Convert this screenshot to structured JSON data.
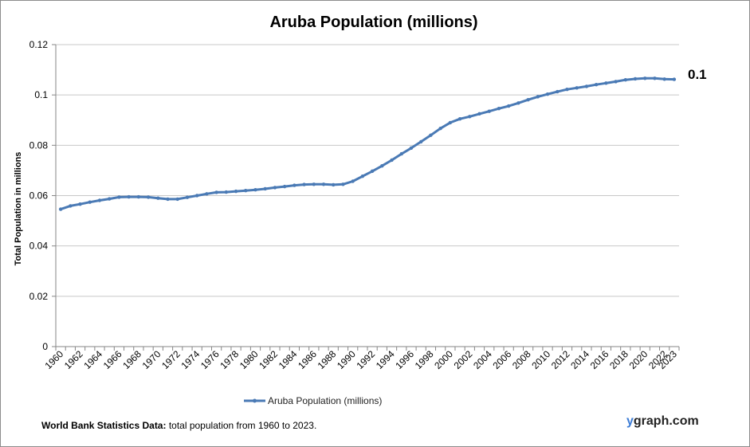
{
  "footer": {
    "source_bold": "World Bank Statistics Data:",
    "source_text": " total population from 1960 to 2023."
  },
  "brand": {
    "first": "y",
    "rest": "graph.com"
  },
  "chart_data": {
    "type": "line",
    "title": "Aruba Population (millions)",
    "xlabel": "",
    "ylabel": "Total Population  in millions",
    "ylim": [
      0,
      0.12
    ],
    "yticks": [
      "0",
      "0.02",
      "0.04",
      "0.06",
      "0.08",
      "0.1",
      "0.12"
    ],
    "xtick_labels": [
      "1960",
      "1962",
      "1964",
      "1966",
      "1968",
      "1970",
      "1972",
      "1974",
      "1976",
      "1978",
      "1980",
      "1982",
      "1984",
      "1986",
      "1988",
      "1990",
      "1992",
      "1994",
      "1996",
      "1998",
      "2000",
      "2002",
      "2004",
      "2006",
      "2008",
      "2010",
      "2012",
      "2014",
      "2016",
      "2018",
      "2020",
      "2022",
      "2023"
    ],
    "grid": true,
    "legend": "bottom",
    "series": [
      {
        "name": "Aruba Population (millions)",
        "color": "#4a7ab5",
        "x": [
          1960,
          1961,
          1962,
          1963,
          1964,
          1965,
          1966,
          1967,
          1968,
          1969,
          1970,
          1971,
          1972,
          1973,
          1974,
          1975,
          1976,
          1977,
          1978,
          1979,
          1980,
          1981,
          1982,
          1983,
          1984,
          1985,
          1986,
          1987,
          1988,
          1989,
          1990,
          1991,
          1992,
          1993,
          1994,
          1995,
          1996,
          1997,
          1998,
          1999,
          2000,
          2001,
          2002,
          2003,
          2004,
          2005,
          2006,
          2007,
          2008,
          2009,
          2010,
          2011,
          2012,
          2013,
          2014,
          2015,
          2016,
          2017,
          2018,
          2019,
          2020,
          2021,
          2022,
          2023
        ],
        "values": [
          0.0546,
          0.0559,
          0.0566,
          0.0574,
          0.0581,
          0.0587,
          0.0594,
          0.0595,
          0.0595,
          0.0594,
          0.059,
          0.0586,
          0.0586,
          0.0593,
          0.06,
          0.0607,
          0.0613,
          0.0614,
          0.0617,
          0.062,
          0.0623,
          0.0627,
          0.0632,
          0.0636,
          0.0641,
          0.0644,
          0.0645,
          0.0645,
          0.0643,
          0.0645,
          0.0657,
          0.0677,
          0.0697,
          0.0718,
          0.0741,
          0.0766,
          0.0789,
          0.0814,
          0.084,
          0.0867,
          0.089,
          0.0905,
          0.0914,
          0.0925,
          0.0935,
          0.0946,
          0.0956,
          0.0968,
          0.0981,
          0.0993,
          0.1003,
          0.1013,
          0.1022,
          0.1028,
          0.1034,
          0.1041,
          0.1047,
          0.1053,
          0.106,
          0.1064,
          0.1066,
          0.1066,
          0.1063,
          0.1062
        ]
      }
    ],
    "end_label": "0.1"
  }
}
